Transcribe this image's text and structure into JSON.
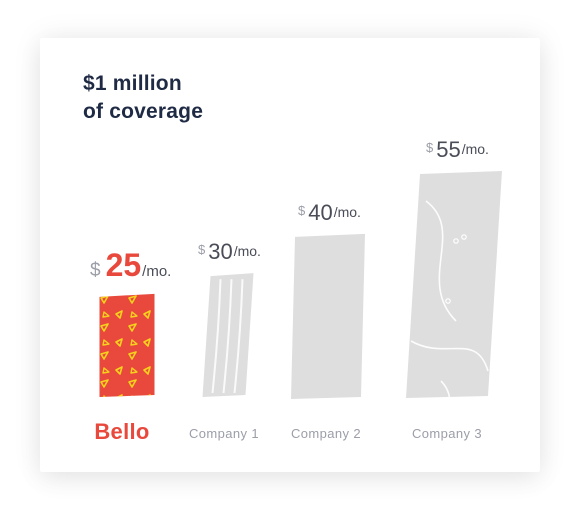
{
  "chart_data": {
    "type": "bar",
    "title_lines": [
      "$1 million",
      "of coverage"
    ],
    "categories": [
      "Bello",
      "Company 1",
      "Company 2",
      "Company 3"
    ],
    "values": [
      25,
      30,
      40,
      55
    ],
    "currency_symbol": "$",
    "unit": "/mo.",
    "highlight_category": "Bello",
    "colors": {
      "highlight": "#e8493c",
      "highlight_pattern": "#f5d21b",
      "muted": "#dedede",
      "title": "#1f2a44",
      "label_muted": "#9c9ea8",
      "value_text": "#4a4d58"
    }
  }
}
